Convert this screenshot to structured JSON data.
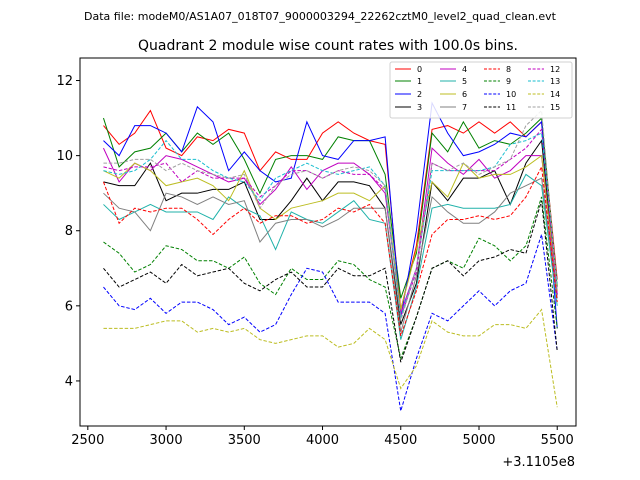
{
  "figure": {
    "suptitle": "Data file: modeM0/AS1A07_018T07_9000003294_22262cztM0_level2_quad_clean.evt"
  },
  "chart_data": {
    "type": "line",
    "title": "Quadrant 2 module wise count rates with 100.0s bins.",
    "xlabel": "",
    "ylabel": "",
    "x_offset_label": "+3.1105e8",
    "xlim": [
      2450,
      5620
    ],
    "ylim": [
      2.8,
      12.6
    ],
    "xticks": [
      2500,
      3000,
      3500,
      4000,
      4500,
      5000,
      5500
    ],
    "yticks": [
      4,
      6,
      8,
      10,
      12
    ],
    "grid": false,
    "legend_position": "top-right",
    "x": [
      2600,
      2700,
      2800,
      2900,
      3000,
      3100,
      3200,
      3300,
      3400,
      3500,
      3600,
      3700,
      3800,
      3900,
      4000,
      4100,
      4200,
      4300,
      4400,
      4500,
      4600,
      4700,
      4800,
      4900,
      5000,
      5100,
      5200,
      5300,
      5400,
      5500
    ],
    "series": [
      {
        "name": "0",
        "color": "#ff0000",
        "dash": "solid",
        "values": [
          10.8,
          10.3,
          10.6,
          11.2,
          10.2,
          10.0,
          10.5,
          10.4,
          10.7,
          10.6,
          9.6,
          10.1,
          9.9,
          9.9,
          10.6,
          10.9,
          10.6,
          10.4,
          10.3,
          5.9,
          7.6,
          10.7,
          10.8,
          10.6,
          10.9,
          10.6,
          10.9,
          10.5,
          10.9,
          6.7
        ]
      },
      {
        "name": "1",
        "color": "#008000",
        "dash": "solid",
        "values": [
          11.0,
          9.7,
          10.1,
          10.2,
          10.6,
          10.1,
          10.6,
          10.3,
          10.6,
          9.9,
          9.0,
          9.9,
          10.0,
          10.0,
          9.9,
          10.5,
          10.4,
          10.4,
          9.5,
          6.2,
          7.4,
          10.6,
          10.1,
          10.9,
          10.2,
          10.4,
          10.3,
          10.6,
          11.0,
          6.5
        ]
      },
      {
        "name": "2",
        "color": "#0000ff",
        "dash": "solid",
        "values": [
          10.4,
          10.0,
          10.8,
          10.8,
          10.6,
          10.1,
          11.3,
          10.9,
          9.6,
          10.1,
          9.6,
          9.3,
          9.4,
          10.9,
          10.0,
          9.9,
          10.4,
          10.4,
          10.5,
          5.7,
          8.0,
          11.4,
          10.6,
          10.0,
          10.1,
          10.3,
          10.6,
          10.5,
          10.9,
          5.4
        ]
      },
      {
        "name": "3",
        "color": "#000000",
        "dash": "solid",
        "values": [
          9.3,
          9.2,
          9.2,
          9.8,
          8.8,
          9.0,
          9.0,
          9.1,
          9.1,
          9.3,
          8.3,
          8.3,
          8.8,
          9.4,
          8.8,
          9.3,
          9.3,
          9.2,
          8.6,
          5.5,
          6.6,
          9.3,
          8.8,
          9.4,
          9.4,
          9.6,
          8.7,
          9.8,
          10.4,
          6.3
        ]
      },
      {
        "name": "4",
        "color": "#c000c0",
        "dash": "solid",
        "values": [
          10.2,
          9.3,
          9.8,
          9.6,
          10.0,
          9.9,
          9.7,
          9.5,
          9.3,
          9.4,
          8.7,
          9.1,
          9.7,
          9.1,
          9.6,
          9.8,
          9.8,
          9.5,
          9.0,
          5.8,
          7.0,
          10.2,
          9.8,
          9.5,
          9.9,
          9.4,
          9.6,
          10.0,
          10.0,
          6.2
        ]
      },
      {
        "name": "5",
        "color": "#20b2aa",
        "dash": "solid",
        "values": [
          8.7,
          8.3,
          8.5,
          8.7,
          8.5,
          8.5,
          8.5,
          8.3,
          8.9,
          8.6,
          8.4,
          7.5,
          8.5,
          8.3,
          8.2,
          8.5,
          8.8,
          8.3,
          8.2,
          5.1,
          6.5,
          8.6,
          8.7,
          8.6,
          8.6,
          8.6,
          8.7,
          9.5,
          9.2,
          6.0
        ]
      },
      {
        "name": "6",
        "color": "#bcbd22",
        "dash": "solid",
        "values": [
          9.6,
          9.4,
          9.8,
          9.6,
          9.2,
          9.3,
          9.4,
          9.2,
          8.8,
          9.6,
          8.6,
          8.3,
          8.6,
          8.7,
          8.8,
          9.0,
          9.0,
          8.8,
          9.2,
          5.9,
          7.5,
          9.3,
          8.9,
          9.8,
          9.4,
          9.5,
          9.5,
          9.7,
          10.0,
          6.4
        ]
      },
      {
        "name": "7",
        "color": "#808080",
        "dash": "solid",
        "values": [
          9.0,
          8.6,
          8.5,
          8.0,
          9.0,
          8.9,
          8.7,
          8.9,
          8.7,
          8.8,
          7.7,
          8.2,
          8.3,
          8.3,
          8.1,
          8.3,
          8.6,
          8.6,
          8.6,
          5.3,
          6.8,
          8.9,
          8.5,
          8.2,
          8.2,
          8.5,
          9.0,
          9.2,
          9.4,
          6.2
        ]
      },
      {
        "name": "8",
        "color": "#ff0000",
        "dash": "dashed",
        "values": [
          9.3,
          8.2,
          8.6,
          8.5,
          8.6,
          8.6,
          8.3,
          7.9,
          8.3,
          8.6,
          8.2,
          8.4,
          8.4,
          8.2,
          8.3,
          8.6,
          8.5,
          8.7,
          8.2,
          5.2,
          6.4,
          7.9,
          8.3,
          8.3,
          8.4,
          8.3,
          8.4,
          8.9,
          9.7,
          6.1
        ]
      },
      {
        "name": "9",
        "color": "#008000",
        "dash": "dashed",
        "values": [
          7.7,
          7.4,
          6.9,
          7.1,
          7.6,
          7.5,
          7.2,
          7.2,
          7.0,
          7.3,
          6.6,
          6.3,
          7.0,
          6.7,
          6.7,
          7.2,
          7.1,
          6.7,
          6.5,
          4.6,
          5.7,
          7.0,
          7.2,
          7.0,
          7.8,
          7.6,
          7.2,
          7.6,
          8.9,
          5.4
        ]
      },
      {
        "name": "10",
        "color": "#0000ff",
        "dash": "dashed",
        "values": [
          6.5,
          6.0,
          5.9,
          6.2,
          5.8,
          6.1,
          6.1,
          5.9,
          5.5,
          5.7,
          5.3,
          5.5,
          6.3,
          7.0,
          6.9,
          6.1,
          6.1,
          6.1,
          5.8,
          3.2,
          4.6,
          5.8,
          5.6,
          6.0,
          6.4,
          6.0,
          6.4,
          6.6,
          7.9,
          4.8
        ]
      },
      {
        "name": "11",
        "color": "#000000",
        "dash": "dashed",
        "values": [
          7.0,
          6.5,
          6.7,
          6.9,
          6.6,
          7.1,
          6.8,
          6.9,
          7.0,
          6.6,
          6.4,
          6.7,
          6.9,
          6.5,
          6.5,
          7.0,
          6.8,
          6.8,
          7.0,
          4.5,
          5.7,
          7.0,
          7.2,
          6.8,
          7.2,
          7.3,
          7.5,
          7.4,
          8.8,
          4.8
        ]
      },
      {
        "name": "12",
        "color": "#c000c0",
        "dash": "dashed",
        "values": [
          9.7,
          9.6,
          9.7,
          9.7,
          9.8,
          9.3,
          9.6,
          9.4,
          9.4,
          9.4,
          8.9,
          9.2,
          9.6,
          9.6,
          9.4,
          9.6,
          9.5,
          9.5,
          9.1,
          5.7,
          6.9,
          9.8,
          9.6,
          9.6,
          9.6,
          9.6,
          9.9,
          10.2,
          10.7,
          6.3
        ]
      },
      {
        "name": "13",
        "color": "#17becf",
        "dash": "dashed",
        "values": [
          9.6,
          9.5,
          9.6,
          9.9,
          10.4,
          9.9,
          9.9,
          9.6,
          9.4,
          9.3,
          8.8,
          9.4,
          9.6,
          9.8,
          9.6,
          9.5,
          9.6,
          9.7,
          9.2,
          5.7,
          7.0,
          9.6,
          9.6,
          9.6,
          9.6,
          9.7,
          10.3,
          10.4,
          10.6,
          6.6
        ]
      },
      {
        "name": "14",
        "color": "#bcbd22",
        "dash": "dashed",
        "values": [
          5.4,
          5.4,
          5.4,
          5.5,
          5.6,
          5.6,
          5.3,
          5.4,
          5.3,
          5.4,
          5.1,
          5.0,
          5.1,
          5.2,
          5.2,
          4.9,
          5.0,
          5.4,
          5.1,
          3.8,
          4.4,
          5.6,
          5.3,
          5.2,
          5.2,
          5.5,
          5.5,
          5.4,
          5.9,
          3.3
        ]
      },
      {
        "name": "15",
        "color": "#a0a0a0",
        "dash": "dashed",
        "values": [
          9.8,
          9.8,
          9.9,
          9.9,
          9.6,
          9.8,
          9.6,
          9.5,
          9.4,
          9.5,
          8.6,
          9.2,
          9.5,
          9.6,
          9.4,
          9.6,
          9.7,
          9.6,
          9.2,
          5.6,
          7.0,
          9.8,
          9.6,
          9.8,
          9.5,
          9.7,
          9.9,
          10.8,
          11.2,
          6.4
        ]
      }
    ]
  }
}
